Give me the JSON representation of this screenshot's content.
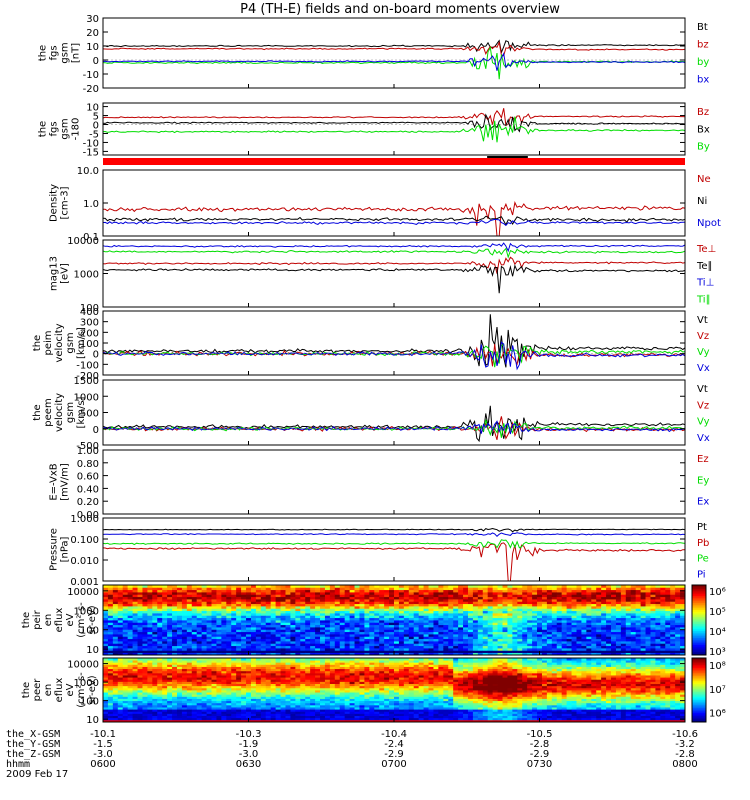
{
  "title": "P4 (TH-E) fields and on-board moments overview",
  "colors": {
    "black": "#000000",
    "red": "#c00000",
    "green": "#00dd00",
    "blue": "#0000dd",
    "gray": "#d8d8d8"
  },
  "chart_data": [
    {
      "id": "p1",
      "type": "line",
      "ylabel_lines": [
        "the",
        "fgs",
        "gsm",
        "[nT]"
      ],
      "ylim": [
        -20,
        30
      ],
      "scale": "linear",
      "ticks": [
        {
          "v": 30,
          "label": "30"
        },
        {
          "v": 20,
          "label": "20"
        },
        {
          "v": 10,
          "label": "10"
        },
        {
          "v": 0,
          "label": "0"
        },
        {
          "v": -10,
          "label": "-10"
        },
        {
          "v": -20,
          "label": "-20"
        }
      ],
      "series": [
        {
          "name": "Bt",
          "color": "#000000",
          "base": 10,
          "noise": 0.4,
          "event_amp": 6
        },
        {
          "name": "bz",
          "color": "#c00000",
          "base": 8,
          "noise": 0.4,
          "event_amp": 5
        },
        {
          "name": "by",
          "color": "#00dd00",
          "base": -2,
          "noise": 0.5,
          "event_amp": 8
        },
        {
          "name": "bx",
          "color": "#0000dd",
          "base": -1,
          "noise": 0.4,
          "event_amp": 5
        }
      ]
    },
    {
      "id": "p2",
      "type": "line",
      "ylabel_lines": [
        "the",
        "fgs",
        "gsm",
        "-180"
      ],
      "ylim": [
        -17,
        12
      ],
      "scale": "linear",
      "ticks": [
        {
          "v": 10,
          "label": "10"
        },
        {
          "v": 5,
          "label": "5"
        },
        {
          "v": 0,
          "label": "0"
        },
        {
          "v": -5,
          "label": "-5"
        },
        {
          "v": -10,
          "label": "-10"
        },
        {
          "v": -15,
          "label": "-15"
        }
      ],
      "series": [
        {
          "name": "Bz",
          "color": "#c00000",
          "base": 4,
          "noise": 0.3,
          "event_amp": 5
        },
        {
          "name": "Bx",
          "color": "#000000",
          "base": 1,
          "noise": 0.3,
          "event_amp": 5
        },
        {
          "name": "By",
          "color": "#00dd00",
          "base": -4,
          "noise": 0.4,
          "event_amp": 7
        }
      ]
    },
    {
      "id": "p3",
      "type": "line",
      "ylabel_lines": [
        "Density",
        "[cm-3]"
      ],
      "ylim": [
        0.1,
        10
      ],
      "scale": "log",
      "ticks": [
        {
          "v": 10,
          "label": "10.0"
        },
        {
          "v": 1,
          "label": "1.0"
        },
        {
          "v": 0.1,
          "label": "0.1"
        }
      ],
      "series": [
        {
          "name": "Ne",
          "color": "#c00000",
          "base": 0.65,
          "noise": 0.08,
          "event_amp": 0.6
        },
        {
          "name": "Ni",
          "color": "#000000",
          "base": 0.32,
          "noise": 0.03,
          "event_amp": 0.1
        },
        {
          "name": "Npot",
          "color": "#0000dd",
          "base": 0.25,
          "noise": 0.02,
          "event_amp": 0.05
        }
      ]
    },
    {
      "id": "p4",
      "type": "line",
      "ylabel_lines": [
        "mag13",
        "[eV]"
      ],
      "ylim": [
        100,
        10000
      ],
      "scale": "log",
      "ticks": [
        {
          "v": 10000,
          "label": "10000"
        },
        {
          "v": 1000,
          "label": "1000"
        },
        {
          "v": 100,
          "label": "100"
        }
      ],
      "series": [
        {
          "name": "Te⊥",
          "color": "#c00000",
          "base": 2000,
          "noise": 100,
          "event_amp": 900
        },
        {
          "name": "Te∥",
          "color": "#000000",
          "base": 1300,
          "noise": 80,
          "event_amp": 900
        },
        {
          "name": "Ti⊥",
          "color": "#0000dd",
          "base": 6500,
          "noise": 300,
          "event_amp": 1500
        },
        {
          "name": "Ti∥",
          "color": "#00dd00",
          "base": 4500,
          "noise": 250,
          "event_amp": 1200
        }
      ]
    },
    {
      "id": "p5",
      "type": "line",
      "ylabel_lines": [
        "the",
        "peim",
        "velocity",
        "gsm",
        "[km/s]"
      ],
      "ylim": [
        -200,
        400
      ],
      "scale": "linear",
      "ticks": [
        {
          "v": 400,
          "label": "400"
        },
        {
          "v": 300,
          "label": "300"
        },
        {
          "v": 200,
          "label": "200"
        },
        {
          "v": 100,
          "label": "100"
        },
        {
          "v": 0,
          "label": "0"
        },
        {
          "v": -100,
          "label": "-100"
        },
        {
          "v": -200,
          "label": "-200"
        }
      ],
      "series": [
        {
          "name": "Vt",
          "color": "#000000",
          "base": 25,
          "noise": 15,
          "event_amp": 250
        },
        {
          "name": "Vz",
          "color": "#c00000",
          "base": 0,
          "noise": 18,
          "event_amp": 120
        },
        {
          "name": "Vy",
          "color": "#00dd00",
          "base": 0,
          "noise": 15,
          "event_amp": 150
        },
        {
          "name": "Vx",
          "color": "#0000dd",
          "base": 0,
          "noise": 15,
          "event_amp": 150
        }
      ]
    },
    {
      "id": "p6",
      "type": "line",
      "ylabel_lines": [
        "the",
        "peem",
        "velocity",
        "gsm",
        "[km/s]"
      ],
      "ylim": [
        -500,
        1500
      ],
      "scale": "linear",
      "ticks": [
        {
          "v": 1500,
          "label": "1500"
        },
        {
          "v": 1000,
          "label": "1000"
        },
        {
          "v": 500,
          "label": "500"
        },
        {
          "v": 0,
          "label": "0"
        },
        {
          "v": -500,
          "label": "-500"
        }
      ],
      "series": [
        {
          "name": "Vt",
          "color": "#000000",
          "base": 60,
          "noise": 45,
          "event_amp": 700
        },
        {
          "name": "Vz",
          "color": "#c00000",
          "base": 0,
          "noise": 50,
          "event_amp": 300
        },
        {
          "name": "Vy",
          "color": "#00dd00",
          "base": 0,
          "noise": 45,
          "event_amp": 300
        },
        {
          "name": "Vx",
          "color": "#0000dd",
          "base": 0,
          "noise": 45,
          "event_amp": 300
        }
      ]
    },
    {
      "id": "p7",
      "type": "line",
      "ylabel_lines": [
        "E=-VxB",
        "[mV/m]"
      ],
      "ylim": [
        0,
        1
      ],
      "scale": "linear",
      "ticks": [
        {
          "v": 1.0,
          "label": "1.00"
        },
        {
          "v": 0.8,
          "label": "0.80"
        },
        {
          "v": 0.6,
          "label": "0.60"
        },
        {
          "v": 0.4,
          "label": "0.40"
        },
        {
          "v": 0.2,
          "label": "0.20"
        },
        {
          "v": 0.0,
          "label": "0.00"
        }
      ],
      "series": [
        {
          "name": "Ez",
          "color": "#c00000",
          "base": null
        },
        {
          "name": "Ey",
          "color": "#00dd00",
          "base": null
        },
        {
          "name": "Ex",
          "color": "#0000dd",
          "base": null
        }
      ]
    },
    {
      "id": "p8",
      "type": "line",
      "ylabel_lines": [
        "Pressure",
        "[nPa]"
      ],
      "ylim": [
        0.001,
        1
      ],
      "scale": "log",
      "ticks": [
        {
          "v": 1,
          "label": "1.000"
        },
        {
          "v": 0.1,
          "label": "0.100"
        },
        {
          "v": 0.01,
          "label": "0.010"
        },
        {
          "v": 0.001,
          "label": "0.001"
        }
      ],
      "series": [
        {
          "name": "Pt",
          "color": "#000000",
          "base": 0.28,
          "noise": 0.01,
          "event_amp": 0.05
        },
        {
          "name": "Pb",
          "color": "#c00000",
          "base": 0.035,
          "noise": 0.003,
          "event_amp": 0.06
        },
        {
          "name": "Pe",
          "color": "#00dd00",
          "base": 0.06,
          "noise": 0.004,
          "event_amp": 0.03
        },
        {
          "name": "Pi",
          "color": "#0000dd",
          "base": 0.17,
          "noise": 0.008,
          "event_amp": 0.04
        }
      ]
    },
    {
      "id": "p9",
      "type": "heatmap",
      "ylabel_lines": [
        "the",
        "peir",
        "en",
        "eflux",
        "eV",
        "(cm^2-s-",
        "sr-eV)"
      ],
      "ylim": [
        5,
        20000
      ],
      "scale": "log",
      "ticks": [
        {
          "v": 10000,
          "label": "10000"
        },
        {
          "v": 1000,
          "label": "1000"
        },
        {
          "v": 100,
          "label": "100"
        },
        {
          "v": 10,
          "label": "10"
        }
      ],
      "colorbar": {
        "labels": [
          "10^6",
          "10^5",
          "10^4",
          "10^3"
        ],
        "range_exp": [
          2.8,
          6.3
        ]
      }
    },
    {
      "id": "p10",
      "type": "heatmap",
      "ylabel_lines": [
        "the",
        "peer",
        "en",
        "eflux",
        "eV",
        "(cm^2-s-",
        "sr-eV)"
      ],
      "ylim": [
        7,
        20000
      ],
      "scale": "log",
      "ticks": [
        {
          "v": 10000,
          "label": "10000"
        },
        {
          "v": 1000,
          "label": "1000"
        },
        {
          "v": 100,
          "label": "100"
        },
        {
          "v": 10,
          "label": "10"
        }
      ],
      "colorbar": {
        "labels": [
          "10^8",
          "10^7",
          "10^6"
        ],
        "range_exp": [
          5.6,
          8.3
        ]
      }
    }
  ],
  "xaxis": {
    "rows": [
      {
        "label": "the_X-GSM",
        "values": [
          "-10.1",
          "-10.3",
          "-10.4",
          "-10.5",
          "-10.6"
        ]
      },
      {
        "label": "the_Y-GSM",
        "values": [
          "-1.5",
          "-1.9",
          "-2.4",
          "-2.8",
          "-3.2"
        ]
      },
      {
        "label": "the_Z-GSM",
        "values": [
          "-3.0",
          "-3.0",
          "-2.9",
          "-2.9",
          "-2.8"
        ]
      },
      {
        "label": "hhmm",
        "values": [
          "0600",
          "0630",
          "0700",
          "0730",
          "0800"
        ]
      }
    ],
    "date": "2009 Feb 17"
  }
}
